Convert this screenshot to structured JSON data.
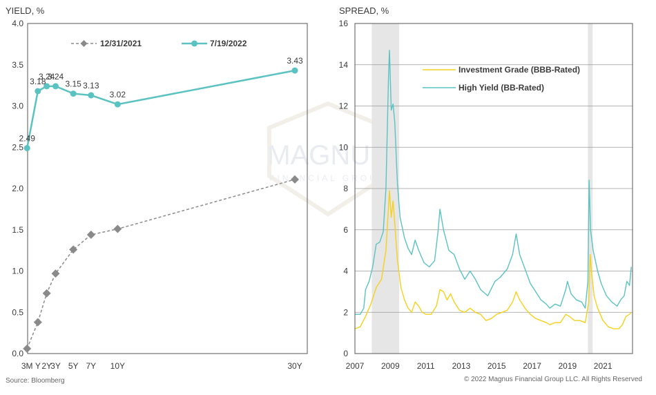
{
  "chart_data": [
    {
      "type": "line",
      "ylabel": "YIELD, %",
      "xlabel": "",
      "x": [
        "3M",
        "1Y",
        "2Y",
        "3Y",
        "5Y",
        "7Y",
        "10Y",
        "30Y"
      ],
      "x_years": [
        0.25,
        1,
        2,
        3,
        5,
        7,
        10,
        30
      ],
      "ylim": [
        0.0,
        4.0
      ],
      "yticks": [
        "0.0",
        "0.5",
        "1.0",
        "1.5",
        "2.0",
        "2.5",
        "3.0",
        "3.5",
        "4.0"
      ],
      "xtick_labels": [
        "3M",
        "Y",
        "2Y",
        "3Y",
        "5Y",
        "7Y",
        "10Y",
        "30Y"
      ],
      "legend_position": "top",
      "series": [
        {
          "name": "12/31/2021",
          "color": "#8a8a8a",
          "style": "dashed",
          "marker": "diamond",
          "values": [
            0.06,
            0.38,
            0.73,
            0.97,
            1.26,
            1.44,
            1.51,
            2.11
          ]
        },
        {
          "name": "7/19/2022",
          "color": "#5bc2c2",
          "style": "solid",
          "marker": "circle",
          "values": [
            2.49,
            3.18,
            3.24,
            3.24,
            3.15,
            3.13,
            3.02,
            3.43
          ],
          "labels": [
            "2.49",
            "3.18",
            "3.24",
            "3.24",
            "3.15",
            "3.13",
            "3.02",
            "3.43"
          ]
        }
      ]
    },
    {
      "type": "line",
      "ylabel": "SPREAD, %",
      "xlabel": "",
      "xlim": [
        2007,
        2022.67
      ],
      "ylim": [
        0,
        16
      ],
      "yticks": [
        "0",
        "2",
        "4",
        "6",
        "8",
        "10",
        "12",
        "14",
        "16"
      ],
      "xticks": [
        "2007",
        "2009",
        "2011",
        "2013",
        "2015",
        "2017",
        "2019",
        "2021"
      ],
      "legend_position": "top-right",
      "recession_shading": [
        [
          2007.95,
          2009.5
        ],
        [
          2020.15,
          2020.42
        ]
      ],
      "series": [
        {
          "name": "Investment Grade (BBB-Rated)",
          "color": "#f5d11c",
          "points": [
            [
              2007.0,
              1.2
            ],
            [
              2007.3,
              1.3
            ],
            [
              2007.6,
              1.8
            ],
            [
              2007.9,
              2.4
            ],
            [
              2008.2,
              3.2
            ],
            [
              2008.5,
              3.6
            ],
            [
              2008.75,
              5.0
            ],
            [
              2008.95,
              7.9
            ],
            [
              2009.05,
              6.6
            ],
            [
              2009.15,
              7.4
            ],
            [
              2009.25,
              6.3
            ],
            [
              2009.4,
              4.5
            ],
            [
              2009.6,
              3.2
            ],
            [
              2009.8,
              2.6
            ],
            [
              2010.0,
              2.2
            ],
            [
              2010.2,
              2.0
            ],
            [
              2010.4,
              2.5
            ],
            [
              2010.6,
              2.3
            ],
            [
              2010.8,
              2.0
            ],
            [
              2011.0,
              1.9
            ],
            [
              2011.3,
              1.9
            ],
            [
              2011.6,
              2.3
            ],
            [
              2011.8,
              3.1
            ],
            [
              2012.0,
              3.0
            ],
            [
              2012.2,
              2.6
            ],
            [
              2012.4,
              2.9
            ],
            [
              2012.6,
              2.5
            ],
            [
              2012.9,
              2.1
            ],
            [
              2013.2,
              2.0
            ],
            [
              2013.5,
              2.2
            ],
            [
              2013.8,
              2.0
            ],
            [
              2014.1,
              1.9
            ],
            [
              2014.4,
              1.6
            ],
            [
              2014.7,
              1.7
            ],
            [
              2015.0,
              1.9
            ],
            [
              2015.3,
              2.0
            ],
            [
              2015.6,
              2.1
            ],
            [
              2015.9,
              2.5
            ],
            [
              2016.1,
              3.0
            ],
            [
              2016.3,
              2.6
            ],
            [
              2016.6,
              2.2
            ],
            [
              2016.9,
              1.9
            ],
            [
              2017.2,
              1.7
            ],
            [
              2017.5,
              1.6
            ],
            [
              2017.8,
              1.5
            ],
            [
              2018.0,
              1.4
            ],
            [
              2018.3,
              1.5
            ],
            [
              2018.6,
              1.5
            ],
            [
              2018.9,
              1.9
            ],
            [
              2019.1,
              1.8
            ],
            [
              2019.4,
              1.6
            ],
            [
              2019.7,
              1.6
            ],
            [
              2020.0,
              1.5
            ],
            [
              2020.2,
              2.5
            ],
            [
              2020.28,
              4.8
            ],
            [
              2020.35,
              4.0
            ],
            [
              2020.5,
              2.8
            ],
            [
              2020.7,
              2.2
            ],
            [
              2021.0,
              1.6
            ],
            [
              2021.3,
              1.3
            ],
            [
              2021.6,
              1.2
            ],
            [
              2021.9,
              1.2
            ],
            [
              2022.1,
              1.4
            ],
            [
              2022.3,
              1.8
            ],
            [
              2022.5,
              1.9
            ],
            [
              2022.6,
              2.0
            ]
          ]
        },
        {
          "name": "High Yield (BB-Rated)",
          "color": "#5bc2c2",
          "points": [
            [
              2007.0,
              1.9
            ],
            [
              2007.3,
              1.9
            ],
            [
              2007.5,
              2.2
            ],
            [
              2007.6,
              3.1
            ],
            [
              2007.8,
              3.5
            ],
            [
              2008.0,
              4.2
            ],
            [
              2008.2,
              5.3
            ],
            [
              2008.4,
              5.4
            ],
            [
              2008.6,
              5.9
            ],
            [
              2008.75,
              8.0
            ],
            [
              2008.9,
              13.5
            ],
            [
              2008.95,
              14.7
            ],
            [
              2009.05,
              11.8
            ],
            [
              2009.15,
              12.1
            ],
            [
              2009.25,
              11.2
            ],
            [
              2009.4,
              8.2
            ],
            [
              2009.55,
              6.6
            ],
            [
              2009.8,
              5.6
            ],
            [
              2010.0,
              5.1
            ],
            [
              2010.2,
              4.8
            ],
            [
              2010.4,
              5.5
            ],
            [
              2010.6,
              5.0
            ],
            [
              2010.9,
              4.4
            ],
            [
              2011.2,
              4.2
            ],
            [
              2011.5,
              4.5
            ],
            [
              2011.7,
              6.0
            ],
            [
              2011.8,
              7.0
            ],
            [
              2012.0,
              6.0
            ],
            [
              2012.3,
              5.0
            ],
            [
              2012.6,
              4.8
            ],
            [
              2012.9,
              4.1
            ],
            [
              2013.2,
              3.6
            ],
            [
              2013.5,
              4.0
            ],
            [
              2013.8,
              3.6
            ],
            [
              2014.1,
              3.1
            ],
            [
              2014.5,
              2.8
            ],
            [
              2014.9,
              3.5
            ],
            [
              2015.2,
              3.7
            ],
            [
              2015.6,
              4.1
            ],
            [
              2015.9,
              4.8
            ],
            [
              2016.1,
              5.8
            ],
            [
              2016.3,
              4.8
            ],
            [
              2016.6,
              4.1
            ],
            [
              2016.9,
              3.4
            ],
            [
              2017.2,
              3.0
            ],
            [
              2017.5,
              2.6
            ],
            [
              2017.8,
              2.4
            ],
            [
              2018.0,
              2.2
            ],
            [
              2018.3,
              2.4
            ],
            [
              2018.6,
              2.3
            ],
            [
              2018.9,
              3.1
            ],
            [
              2019.0,
              3.5
            ],
            [
              2019.2,
              2.9
            ],
            [
              2019.5,
              2.6
            ],
            [
              2019.8,
              2.5
            ],
            [
              2020.0,
              2.2
            ],
            [
              2020.15,
              3.5
            ],
            [
              2020.22,
              8.4
            ],
            [
              2020.3,
              6.0
            ],
            [
              2020.45,
              5.0
            ],
            [
              2020.7,
              4.0
            ],
            [
              2020.9,
              3.4
            ],
            [
              2021.2,
              2.8
            ],
            [
              2021.5,
              2.5
            ],
            [
              2021.8,
              2.3
            ],
            [
              2022.0,
              2.6
            ],
            [
              2022.2,
              2.8
            ],
            [
              2022.35,
              3.5
            ],
            [
              2022.5,
              3.3
            ],
            [
              2022.6,
              4.2
            ]
          ]
        }
      ]
    }
  ],
  "watermark": {
    "line1": "MAGNUS",
    "line2": "FINANCIAL GROUP"
  },
  "footer": {
    "source": "Source: Bloomberg",
    "copyright": "© 2022 Magnus Financial Group LLC. All Rights Reserved"
  }
}
